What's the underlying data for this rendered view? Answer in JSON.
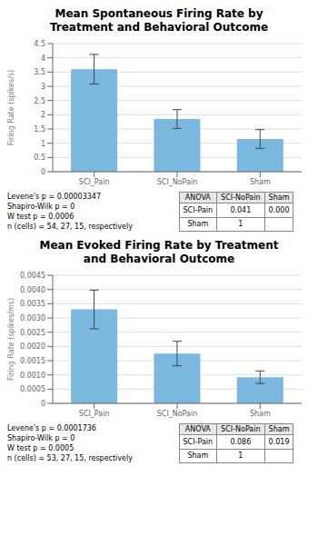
{
  "chart_data": [
    {
      "type": "bar",
      "title": "Mean Spontaneous Firing Rate by\nTreatment and Behavioral Outcome",
      "categories": [
        "SCI_Pain",
        "SCI_NoPain",
        "Sham"
      ],
      "values": [
        3.6,
        1.85,
        1.15
      ],
      "errors": [
        0.52,
        0.33,
        0.33
      ],
      "color": "#7ab8e0",
      "ylabel": "Firing Rate (spikes/s)",
      "ylim": [
        0,
        4.5
      ],
      "yticks": [
        0,
        0.5,
        1,
        1.5,
        2,
        2.5,
        3,
        3.5,
        4,
        4.5
      ],
      "grid": true,
      "annotations": [
        "Levene's p = 0.00003347",
        "Shapiro-Wilk p = 0",
        "W test p = 0.0006",
        "n (cells) = 54, 27, 15, respectively"
      ],
      "table": {
        "headers": [
          "ANOVA",
          "SCI-NoPain",
          "Sham"
        ],
        "rows": [
          [
            "SCI-Pain",
            "0.041",
            "0.000"
          ],
          [
            "Sham",
            "1",
            null
          ]
        ]
      }
    },
    {
      "type": "bar",
      "title": "Mean Evoked Firing Rate by Treatment\nand Behavioral Outcome",
      "categories": [
        "SCI_Pain",
        "SCI_NoPain",
        "Sham"
      ],
      "values": [
        0.0033,
        0.00175,
        0.00092
      ],
      "errors": [
        0.00068,
        0.00043,
        0.00022
      ],
      "color": "#7ab8e0",
      "ylabel": "Firing Rate (spikes/ms)",
      "ylim": [
        0,
        0.0045
      ],
      "yticks": [
        0,
        0.0005,
        {
          "value": 0.001,
          "label": "0.0010"
        },
        0.0015,
        {
          "value": 0.002,
          "label": "0.0020"
        },
        0.0025,
        {
          "value": 0.003,
          "label": "0.0030"
        },
        0.0035,
        {
          "value": 0.004,
          "label": "0.0040"
        },
        0.0045
      ],
      "grid": true,
      "annotations": [
        "Levene's p = 0.0001736",
        "Shapiro-Wilk p = 0",
        "W test p = 0.0005",
        "n (cells) = 53, 27, 15, respectively"
      ],
      "table": {
        "headers": [
          "ANOVA",
          "SCI-NoPain",
          "Sham"
        ],
        "rows": [
          [
            "SCI-Pain",
            "0.086",
            "0.019"
          ],
          [
            "Sham",
            "1",
            null
          ]
        ]
      }
    }
  ]
}
